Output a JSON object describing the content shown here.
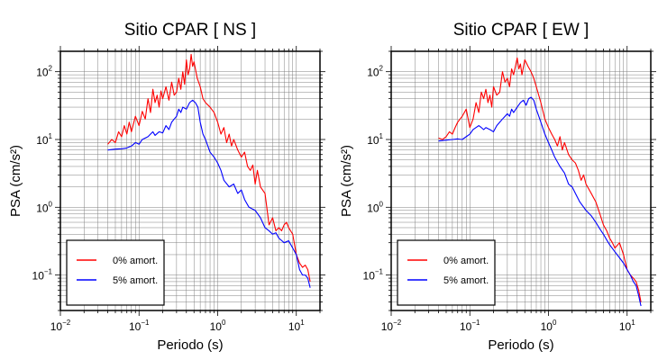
{
  "chart_data": [
    {
      "type": "line",
      "title": "Sitio CPAR [ NS ]",
      "xlabel": "Periodo (s)",
      "ylabel": "PSA (cm/s²)",
      "xscale": "log",
      "yscale": "log",
      "xlim": [
        0.01,
        20
      ],
      "ylim": [
        0.03,
        200
      ],
      "xticks": [
        {
          "mant": "10",
          "exp": "−2"
        },
        {
          "mant": "10",
          "exp": "−1"
        },
        {
          "mant": "10",
          "exp": "0"
        },
        {
          "mant": "10",
          "exp": "1"
        }
      ],
      "yticks": [
        {
          "mant": "10",
          "exp": "−1"
        },
        {
          "mant": "10",
          "exp": "0"
        },
        {
          "mant": "10",
          "exp": "1"
        },
        {
          "mant": "10",
          "exp": "2"
        }
      ],
      "grid": true,
      "legend_position": "bottom-left",
      "series": [
        {
          "name": "0% amort.",
          "color": "#ff0000",
          "x": [
            0.04,
            0.045,
            0.05,
            0.055,
            0.06,
            0.065,
            0.07,
            0.075,
            0.08,
            0.09,
            0.1,
            0.11,
            0.12,
            0.13,
            0.14,
            0.15,
            0.16,
            0.17,
            0.18,
            0.19,
            0.2,
            0.22,
            0.24,
            0.26,
            0.28,
            0.3,
            0.32,
            0.34,
            0.36,
            0.38,
            0.4,
            0.42,
            0.44,
            0.46,
            0.48,
            0.5,
            0.55,
            0.6,
            0.65,
            0.7,
            0.8,
            0.9,
            1.0,
            1.1,
            1.2,
            1.3,
            1.4,
            1.5,
            1.6,
            1.8,
            2.0,
            2.2,
            2.4,
            2.6,
            2.8,
            3.0,
            3.2,
            3.5,
            4.0,
            4.5,
            5.0,
            5.5,
            6.0,
            6.5,
            7.0,
            7.5,
            8.0,
            9.0,
            10.0,
            11.0,
            12.0,
            13.0,
            14.0,
            15.0
          ],
          "y": [
            8.5,
            10,
            9,
            13,
            11,
            16,
            12,
            18,
            13,
            22,
            16,
            26,
            20,
            40,
            25,
            55,
            35,
            45,
            30,
            52,
            40,
            60,
            38,
            70,
            45,
            50,
            80,
            55,
            100,
            65,
            150,
            90,
            110,
            180,
            120,
            140,
            80,
            60,
            40,
            35,
            30,
            25,
            18,
            12,
            15,
            9,
            12,
            8,
            10,
            7,
            5.5,
            6.5,
            4,
            3.5,
            4.2,
            2.2,
            3.5,
            2.0,
            1.6,
            0.55,
            0.7,
            0.45,
            0.5,
            0.45,
            0.55,
            0.6,
            0.5,
            0.4,
            0.2,
            0.15,
            0.13,
            0.14,
            0.12,
            0.08
          ]
        },
        {
          "name": "5% amort.",
          "color": "#0000ff",
          "x": [
            0.04,
            0.05,
            0.06,
            0.07,
            0.08,
            0.09,
            0.1,
            0.11,
            0.12,
            0.13,
            0.14,
            0.15,
            0.16,
            0.18,
            0.2,
            0.22,
            0.24,
            0.26,
            0.28,
            0.3,
            0.32,
            0.34,
            0.36,
            0.4,
            0.44,
            0.48,
            0.52,
            0.56,
            0.6,
            0.65,
            0.7,
            0.8,
            0.9,
            1.0,
            1.1,
            1.2,
            1.4,
            1.6,
            1.8,
            2.0,
            2.2,
            2.5,
            3.0,
            3.5,
            4.0,
            4.5,
            5.0,
            5.5,
            6.0,
            7.0,
            8.0,
            9.0,
            10.0,
            11.0,
            12.0,
            13.0,
            14.0,
            15.0
          ],
          "y": [
            7,
            7.2,
            7.3,
            7.5,
            8,
            9,
            8.5,
            10,
            10.5,
            11,
            12,
            13,
            11.5,
            13,
            12.5,
            16,
            14,
            18,
            20,
            22,
            28,
            25,
            30,
            28,
            35,
            38,
            35,
            30,
            18,
            12,
            10,
            6.5,
            5.5,
            4.5,
            3.5,
            2.5,
            2.0,
            2.2,
            1.6,
            1.8,
            1.3,
            1.0,
            0.9,
            0.7,
            0.5,
            0.45,
            0.4,
            0.42,
            0.35,
            0.3,
            0.32,
            0.25,
            0.2,
            0.12,
            0.1,
            0.1,
            0.09,
            0.065
          ]
        }
      ]
    },
    {
      "type": "line",
      "title": "Sitio CPAR [ EW ]",
      "xlabel": "Periodo (s)",
      "ylabel": "PSA (cm/s²)",
      "xscale": "log",
      "yscale": "log",
      "xlim": [
        0.01,
        20
      ],
      "ylim": [
        0.03,
        200
      ],
      "xticks": [
        {
          "mant": "10",
          "exp": "−2"
        },
        {
          "mant": "10",
          "exp": "−1"
        },
        {
          "mant": "10",
          "exp": "0"
        },
        {
          "mant": "10",
          "exp": "1"
        }
      ],
      "yticks": [
        {
          "mant": "10",
          "exp": "−1"
        },
        {
          "mant": "10",
          "exp": "0"
        },
        {
          "mant": "10",
          "exp": "1"
        },
        {
          "mant": "10",
          "exp": "2"
        }
      ],
      "grid": true,
      "legend_position": "bottom-left",
      "series": [
        {
          "name": "0% amort.",
          "color": "#ff0000",
          "x": [
            0.04,
            0.045,
            0.05,
            0.055,
            0.06,
            0.065,
            0.07,
            0.075,
            0.08,
            0.09,
            0.1,
            0.11,
            0.12,
            0.13,
            0.14,
            0.15,
            0.16,
            0.17,
            0.18,
            0.19,
            0.2,
            0.22,
            0.24,
            0.26,
            0.28,
            0.3,
            0.32,
            0.34,
            0.36,
            0.38,
            0.4,
            0.42,
            0.44,
            0.46,
            0.5,
            0.55,
            0.6,
            0.65,
            0.7,
            0.8,
            0.9,
            1.0,
            1.1,
            1.2,
            1.3,
            1.4,
            1.5,
            1.6,
            1.8,
            2.0,
            2.2,
            2.4,
            2.6,
            2.8,
            3.0,
            3.5,
            4.0,
            4.5,
            5.0,
            5.5,
            6.0,
            6.5,
            7.0,
            8.0,
            9.0,
            10.0,
            11.0,
            12.0,
            13.0,
            14.0,
            15.0
          ],
          "y": [
            10.5,
            10,
            11,
            13,
            12,
            15,
            18,
            20,
            22,
            28,
            15,
            20,
            35,
            25,
            50,
            40,
            55,
            35,
            45,
            30,
            60,
            45,
            50,
            100,
            70,
            80,
            60,
            110,
            90,
            120,
            160,
            110,
            130,
            90,
            150,
            120,
            100,
            80,
            60,
            35,
            20,
            15,
            12,
            10,
            8,
            11,
            7,
            9,
            6,
            5,
            4.5,
            3.5,
            2.5,
            3,
            2.2,
            1.6,
            1.2,
            0.8,
            0.55,
            0.45,
            0.35,
            0.3,
            0.25,
            0.3,
            0.2,
            0.12,
            0.1,
            0.09,
            0.08,
            0.06,
            0.04
          ]
        },
        {
          "name": "5% amort.",
          "color": "#0000ff",
          "x": [
            0.04,
            0.05,
            0.06,
            0.07,
            0.08,
            0.09,
            0.1,
            0.11,
            0.12,
            0.13,
            0.14,
            0.15,
            0.16,
            0.18,
            0.2,
            0.22,
            0.24,
            0.26,
            0.28,
            0.3,
            0.32,
            0.34,
            0.36,
            0.4,
            0.44,
            0.48,
            0.52,
            0.56,
            0.6,
            0.65,
            0.7,
            0.8,
            0.9,
            1.0,
            1.1,
            1.2,
            1.4,
            1.6,
            1.8,
            2.0,
            2.2,
            2.5,
            3.0,
            3.5,
            4.0,
            4.5,
            5.0,
            5.5,
            6.0,
            7.0,
            8.0,
            9.0,
            10.0,
            11.0,
            12.0,
            13.0,
            14.0,
            15.0
          ],
          "y": [
            9.5,
            9.8,
            10,
            10.2,
            10,
            11,
            12,
            14,
            15,
            16,
            15,
            14,
            15,
            14,
            13,
            16,
            18,
            20,
            22,
            24,
            22,
            28,
            25,
            30,
            35,
            38,
            32,
            40,
            42,
            38,
            28,
            18,
            12,
            9,
            7,
            5.5,
            4,
            3.2,
            2.2,
            2.0,
            1.6,
            1.2,
            0.9,
            0.75,
            0.6,
            0.48,
            0.4,
            0.33,
            0.28,
            0.22,
            0.18,
            0.15,
            0.12,
            0.1,
            0.08,
            0.07,
            0.05,
            0.035
          ]
        }
      ]
    }
  ]
}
